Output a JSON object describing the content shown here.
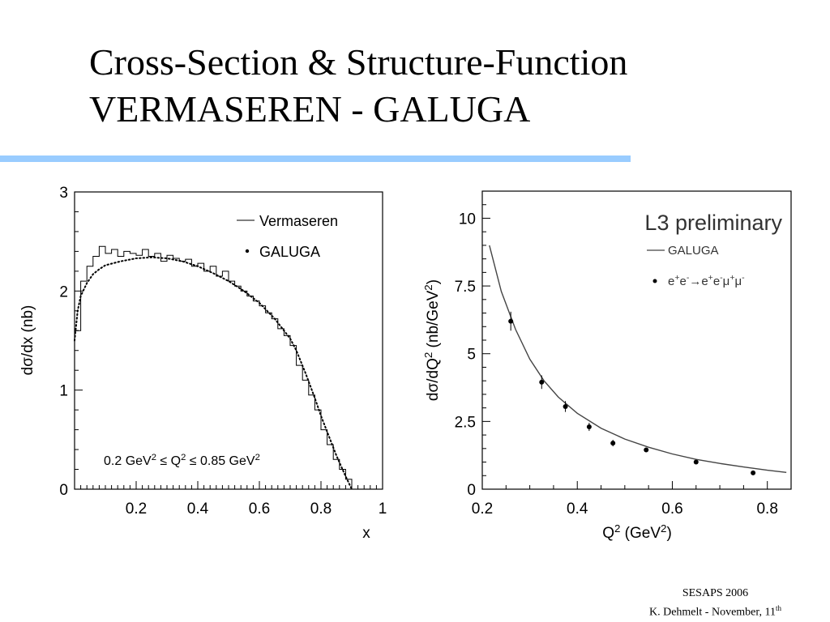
{
  "slide": {
    "title_line1": "Cross-Section & Structure-Function",
    "title_line2": "VERMASEREN - GALUGA",
    "accent_color": "#99ccff",
    "footer_line1": "SESAPS 2006",
    "footer_line2": "K. Dehmelt - November, 11",
    "footer_sup": "th"
  },
  "chart_data": [
    {
      "type": "line",
      "xlabel": "x",
      "ylabel": "dσ/dx (nb)",
      "xlim": [
        0,
        1
      ],
      "ylim": [
        0,
        3
      ],
      "xticks": [
        0.2,
        0.4,
        0.6,
        0.8,
        1
      ],
      "xtick_labels": [
        "0.2",
        "0.4",
        "0.6",
        "0.8",
        "1"
      ],
      "yticks": [
        0,
        1,
        2,
        3
      ],
      "ytick_labels": [
        "0",
        "1",
        "2",
        "3"
      ],
      "legend_position": "top-right",
      "annotation": "0.2 GeV² ≤ Q² ≤ 0.85 GeV²",
      "series": [
        {
          "name": "Vermaseren",
          "style": "step",
          "x": [
            0.0,
            0.02,
            0.04,
            0.06,
            0.08,
            0.1,
            0.12,
            0.14,
            0.16,
            0.18,
            0.2,
            0.22,
            0.24,
            0.26,
            0.28,
            0.3,
            0.32,
            0.34,
            0.36,
            0.38,
            0.4,
            0.42,
            0.44,
            0.46,
            0.48,
            0.5,
            0.52,
            0.54,
            0.56,
            0.58,
            0.6,
            0.62,
            0.64,
            0.66,
            0.68,
            0.7,
            0.72,
            0.74,
            0.76,
            0.78,
            0.8,
            0.82,
            0.84,
            0.86,
            0.88,
            0.9
          ],
          "values": [
            1.6,
            2.1,
            2.25,
            2.35,
            2.45,
            2.38,
            2.42,
            2.35,
            2.4,
            2.38,
            2.36,
            2.42,
            2.35,
            2.38,
            2.3,
            2.36,
            2.33,
            2.3,
            2.32,
            2.25,
            2.28,
            2.2,
            2.25,
            2.15,
            2.2,
            2.1,
            2.05,
            2.0,
            1.95,
            1.9,
            1.85,
            1.78,
            1.72,
            1.62,
            1.55,
            1.45,
            1.25,
            1.1,
            0.95,
            0.8,
            0.6,
            0.45,
            0.3,
            0.2,
            0.1,
            0.0
          ]
        },
        {
          "name": "GALUGA",
          "style": "dotted",
          "x": [
            0.0,
            0.01,
            0.02,
            0.04,
            0.06,
            0.08,
            0.1,
            0.15,
            0.2,
            0.25,
            0.3,
            0.35,
            0.4,
            0.45,
            0.5,
            0.55,
            0.6,
            0.65,
            0.7,
            0.72,
            0.75,
            0.78,
            0.8,
            0.83,
            0.85,
            0.88,
            0.9
          ],
          "values": [
            1.5,
            1.8,
            1.95,
            2.08,
            2.17,
            2.22,
            2.26,
            2.3,
            2.33,
            2.34,
            2.33,
            2.3,
            2.25,
            2.18,
            2.1,
            2.0,
            1.88,
            1.72,
            1.52,
            1.4,
            1.17,
            0.92,
            0.74,
            0.5,
            0.34,
            0.13,
            0.0
          ]
        }
      ]
    },
    {
      "type": "line",
      "title": "L3 preliminary",
      "xlabel": "Q² (GeV²)",
      "ylabel": "dσ/dQ² (nb/GeV²)",
      "xlim": [
        0.2,
        0.85
      ],
      "ylim": [
        0,
        11
      ],
      "xticks": [
        0.2,
        0.4,
        0.6,
        0.8
      ],
      "xtick_labels": [
        "0.2",
        "0.4",
        "0.6",
        "0.8"
      ],
      "yticks": [
        0,
        2.5,
        5,
        7.5,
        10
      ],
      "ytick_labels": [
        "0",
        "2.5",
        "5",
        "7.5",
        "10"
      ],
      "legend_position": "top-right",
      "series": [
        {
          "name": "GALUGA",
          "style": "line",
          "x": [
            0.215,
            0.24,
            0.27,
            0.3,
            0.33,
            0.36,
            0.4,
            0.45,
            0.5,
            0.55,
            0.6,
            0.65,
            0.7,
            0.75,
            0.8,
            0.84
          ],
          "values": [
            9.0,
            7.3,
            5.9,
            4.8,
            4.0,
            3.4,
            2.8,
            2.25,
            1.85,
            1.55,
            1.3,
            1.1,
            0.95,
            0.82,
            0.7,
            0.62
          ]
        },
        {
          "name": "e⁺e⁻→e⁺e⁻μ⁺μ⁻",
          "style": "points",
          "x": [
            0.26,
            0.325,
            0.375,
            0.425,
            0.475,
            0.545,
            0.65,
            0.77
          ],
          "values": [
            6.2,
            3.95,
            3.05,
            2.3,
            1.7,
            1.45,
            1.0,
            0.6
          ],
          "errors": [
            0.35,
            0.25,
            0.2,
            0.15,
            0.12,
            0.08,
            0.06,
            0.05
          ]
        }
      ]
    }
  ]
}
